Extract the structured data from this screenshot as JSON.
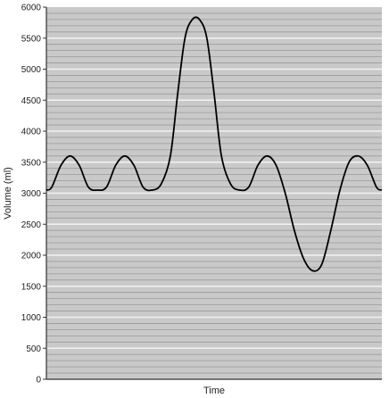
{
  "chart_data": {
    "type": "line",
    "title": "",
    "xlabel": "Time",
    "ylabel": "Volume (ml)",
    "ylim": [
      0,
      6000
    ],
    "yticks": [
      0,
      500,
      1000,
      1500,
      2000,
      2500,
      3000,
      3500,
      4000,
      4500,
      5000,
      5500,
      6000
    ],
    "grid": true,
    "legend": "none",
    "colors": {
      "background": "#c9c9c9",
      "grid_minor": "#9a9a9a",
      "grid_major": "#f2f2f2",
      "line": "#000000"
    },
    "series": [
      {
        "values": [
          [
            0,
            3050
          ],
          [
            3,
            3100
          ],
          [
            8,
            3450
          ],
          [
            13,
            3600
          ],
          [
            18,
            3450
          ],
          [
            23,
            3100
          ],
          [
            28,
            3050
          ],
          [
            33,
            3100
          ],
          [
            38,
            3450
          ],
          [
            43,
            3600
          ],
          [
            48,
            3450
          ],
          [
            53,
            3100
          ],
          [
            58,
            3050
          ],
          [
            63,
            3150
          ],
          [
            68,
            3600
          ],
          [
            72,
            4600
          ],
          [
            76,
            5500
          ],
          [
            80,
            5800
          ],
          [
            84,
            5800
          ],
          [
            88,
            5500
          ],
          [
            92,
            4600
          ],
          [
            96,
            3600
          ],
          [
            101,
            3150
          ],
          [
            106,
            3050
          ],
          [
            111,
            3100
          ],
          [
            116,
            3450
          ],
          [
            121,
            3600
          ],
          [
            126,
            3450
          ],
          [
            131,
            3000
          ],
          [
            136,
            2400
          ],
          [
            141,
            1950
          ],
          [
            146,
            1750
          ],
          [
            151,
            1850
          ],
          [
            156,
            2400
          ],
          [
            161,
            3050
          ],
          [
            166,
            3500
          ],
          [
            171,
            3600
          ],
          [
            176,
            3450
          ],
          [
            181,
            3100
          ],
          [
            184,
            3050
          ]
        ]
      }
    ]
  }
}
